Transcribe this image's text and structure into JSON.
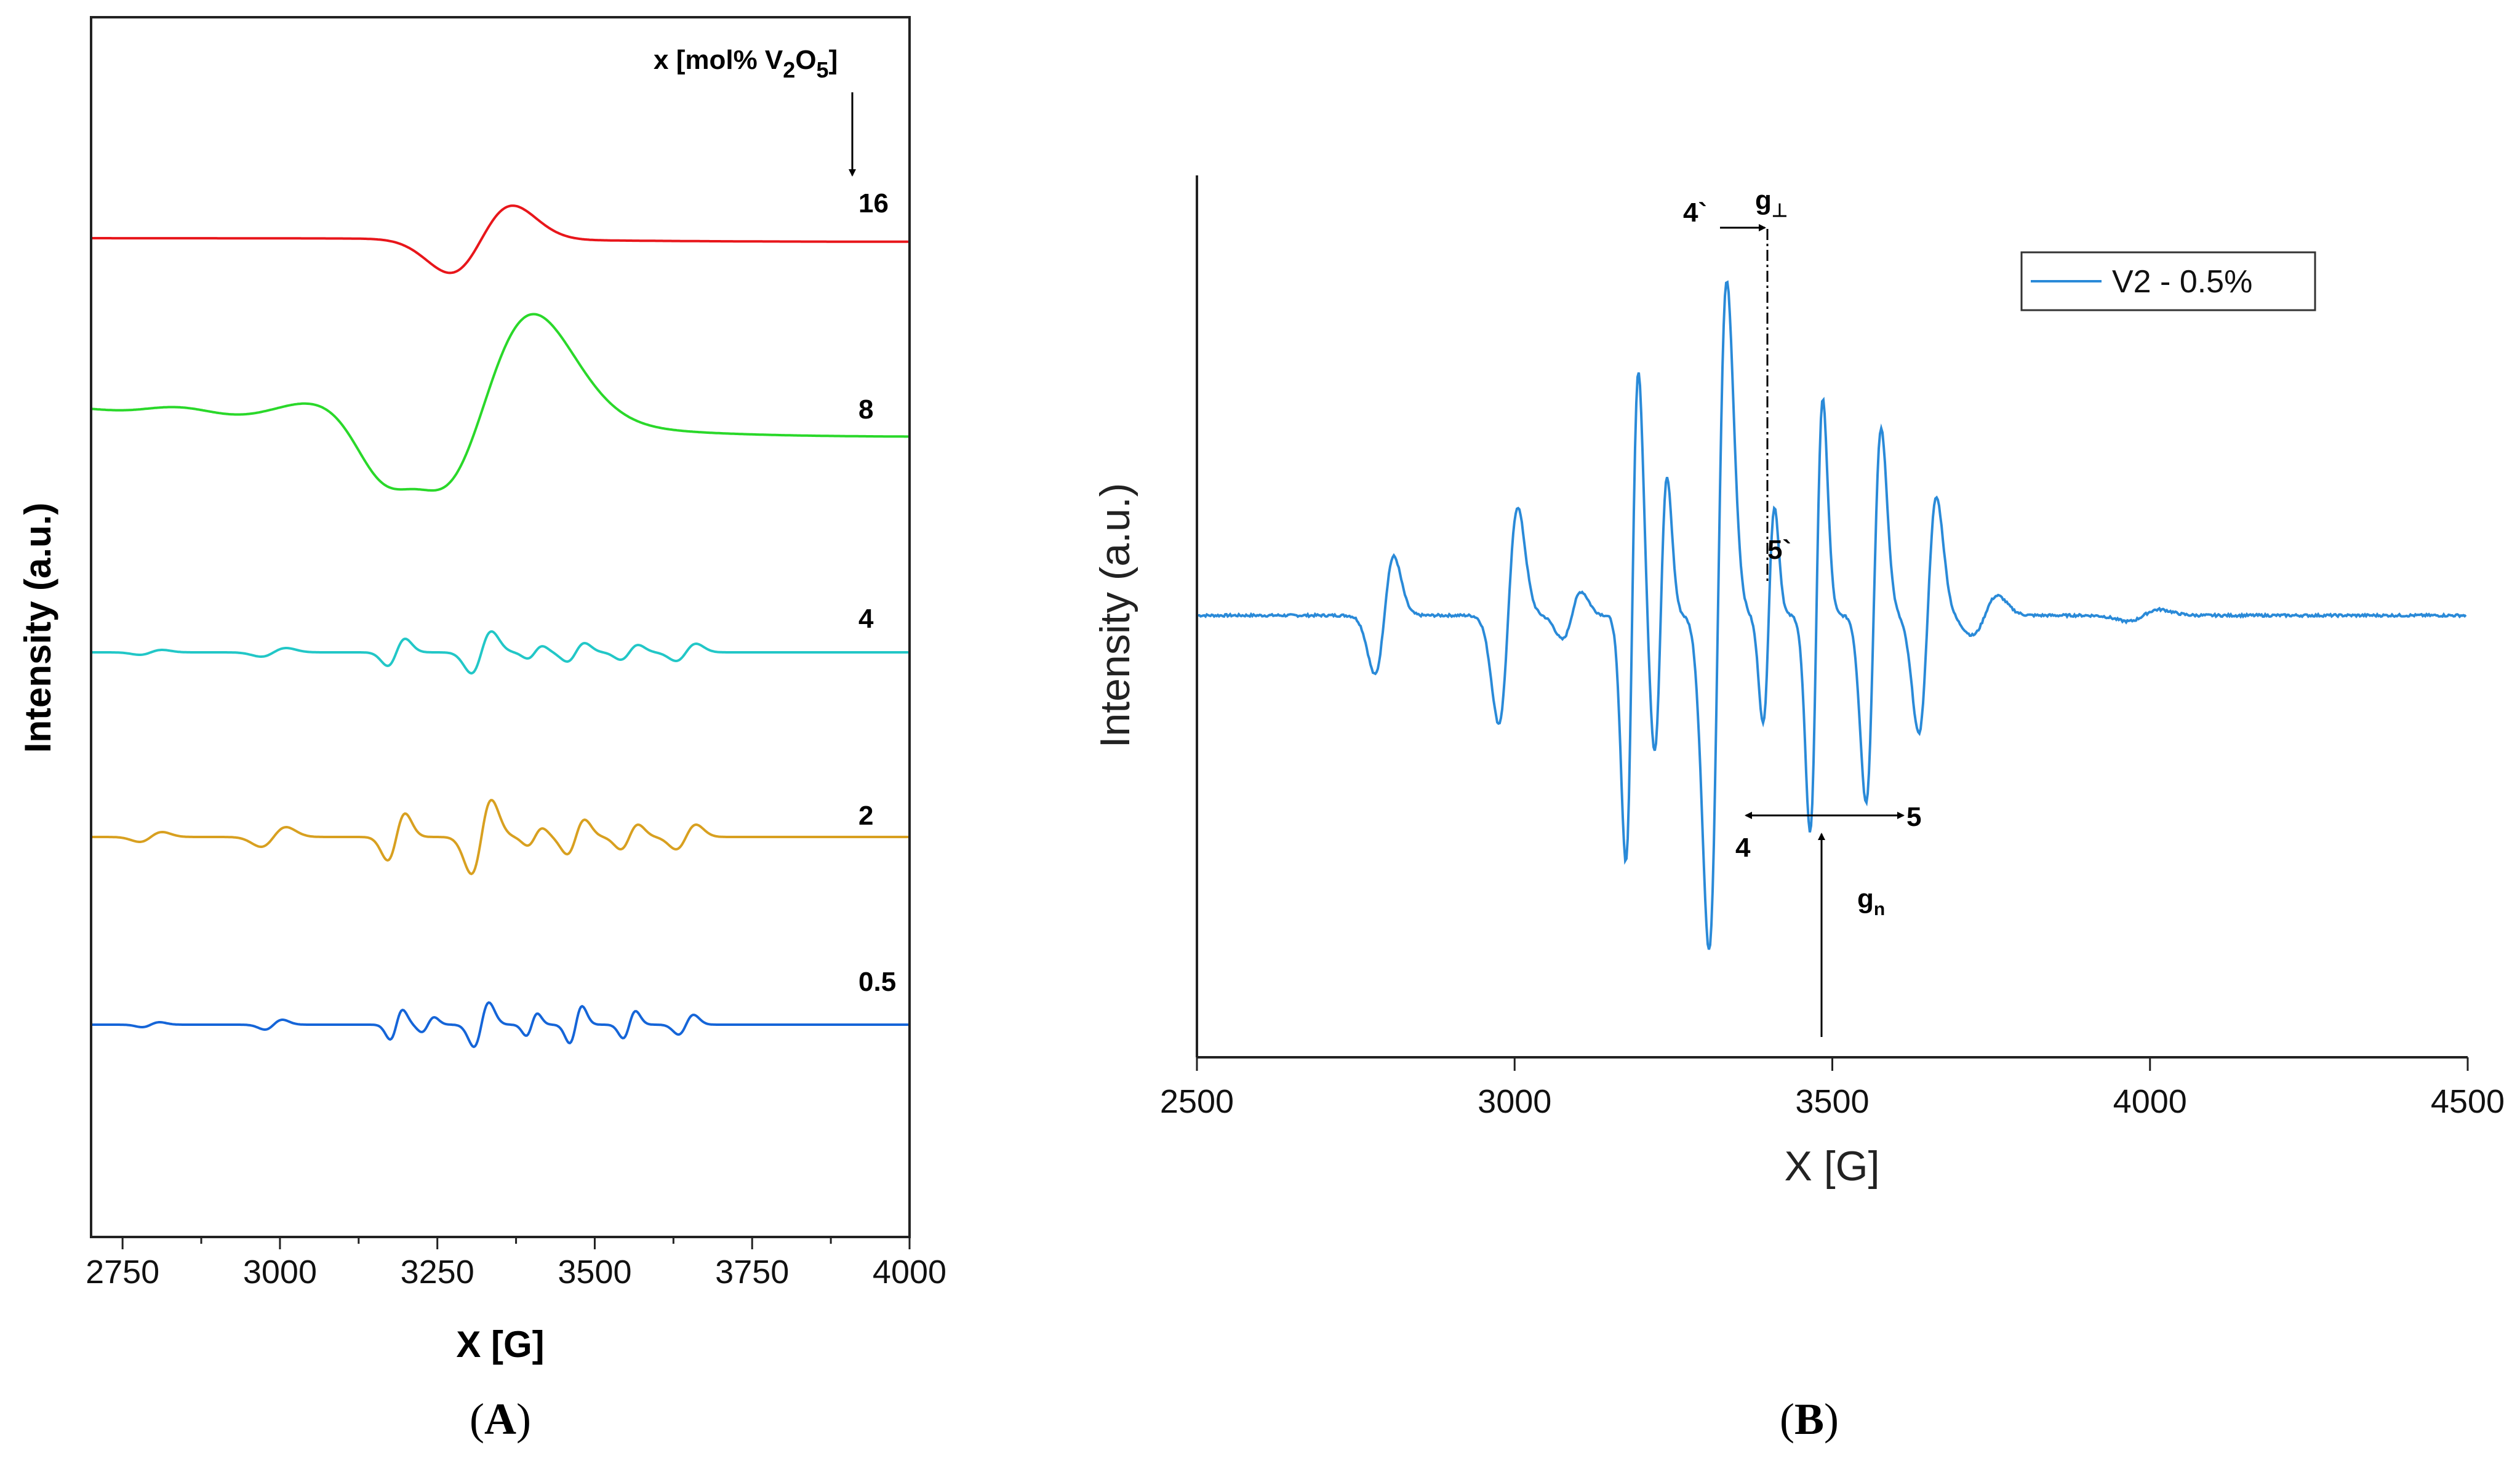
{
  "chart_data": [
    {
      "panel": "A",
      "type": "line",
      "caption_open": "(",
      "caption_letter": "A",
      "caption_close": ")",
      "xlabel": "X [G]",
      "ylabel": "Intensity (a.u.)",
      "xlim": [
        2700,
        4000
      ],
      "xticks": [
        2750,
        3000,
        3250,
        3500,
        3750,
        4000
      ],
      "legend_title_prefix": "x [mol% V",
      "legend_title_sub1": "2",
      "legend_title_mid": "O",
      "legend_title_sub2": "5",
      "legend_title_suffix": "]",
      "series": [
        {
          "name": "16",
          "color": "#e8161b",
          "baseline": 0.8,
          "scale": 1.0,
          "peaks": [
            [
              3320,
              50,
              55
            ]
          ]
        },
        {
          "name": "8",
          "color": "#2ad82a",
          "baseline": 1.3,
          "scale": 1.0,
          "peaks": [
            [
              3320,
              85,
              170
            ],
            [
              3190,
              45,
              40
            ],
            [
              3000,
              80,
              15
            ],
            [
              2800,
              60,
              6
            ]
          ]
        },
        {
          "name": "4",
          "color": "#22c7c7",
          "baseline": 0.2,
          "scale": 1.0,
          "peaks": [
            [
              2795,
              18,
              4
            ],
            [
              2990,
              20,
              7
            ],
            [
              3185,
              14,
              22
            ],
            [
              3320,
              16,
              34
            ],
            [
              3405,
              12,
              10
            ],
            [
              3470,
              14,
              15
            ],
            [
              3555,
              14,
              12
            ],
            [
              3645,
              16,
              14
            ]
          ]
        },
        {
          "name": "2",
          "color": "#d8a020",
          "baseline": 0.2,
          "scale": 1.0,
          "peaks": [
            [
              2795,
              18,
              8
            ],
            [
              2990,
              20,
              16
            ],
            [
              3185,
              14,
              38
            ],
            [
              3320,
              16,
              60
            ],
            [
              3405,
              12,
              14
            ],
            [
              3470,
              14,
              28
            ],
            [
              3555,
              14,
              20
            ],
            [
              3645,
              16,
              20
            ]
          ]
        },
        {
          "name": "0.5",
          "color": "#1565d8",
          "baseline": 0.0,
          "scale": 1.0,
          "peaks": [
            [
              2795,
              14,
              4
            ],
            [
              2990,
              14,
              8
            ],
            [
              3185,
              10,
              24
            ],
            [
              3235,
              10,
              12
            ],
            [
              3320,
              12,
              36
            ],
            [
              3400,
              9,
              18
            ],
            [
              3470,
              10,
              30
            ],
            [
              3555,
              10,
              22
            ],
            [
              3645,
              12,
              16
            ]
          ]
        }
      ]
    },
    {
      "panel": "B",
      "type": "line",
      "caption_open": "(",
      "caption_letter": "B",
      "caption_close": ")",
      "xlabel": "X [G]",
      "ylabel": "Intensity (a.u.)",
      "xlim": [
        2500,
        4500
      ],
      "xticks": [
        2500,
        3000,
        3500,
        4000,
        4500
      ],
      "legend": [
        "V2 - 0.5%"
      ],
      "series": [
        {
          "name": "V2 - 0.5%",
          "color": "#2a8ad8",
          "baseline": 0.0,
          "peaks": [
            [
              2795,
              15,
              30
            ],
            [
              2990,
              15,
              55
            ],
            [
              3090,
              15,
              12
            ],
            [
              3185,
              10,
              125
            ],
            [
              3230,
              10,
              70
            ],
            [
              3320,
              14,
              170
            ],
            [
              3400,
              9,
              55
            ],
            [
              3475,
              10,
              110
            ],
            [
              3565,
              12,
              95
            ],
            [
              3650,
              14,
              60
            ],
            [
              3740,
              20,
              10
            ],
            [
              3990,
              25,
              3
            ]
          ]
        }
      ],
      "annotations": {
        "g_perp": "g",
        "g_perp_sub": "⊥",
        "g_par": "g",
        "g_par_sub": "n",
        "mark_4p": "4`",
        "mark_5p": "5`",
        "mark_4": "4",
        "mark_5": "5"
      }
    }
  ]
}
